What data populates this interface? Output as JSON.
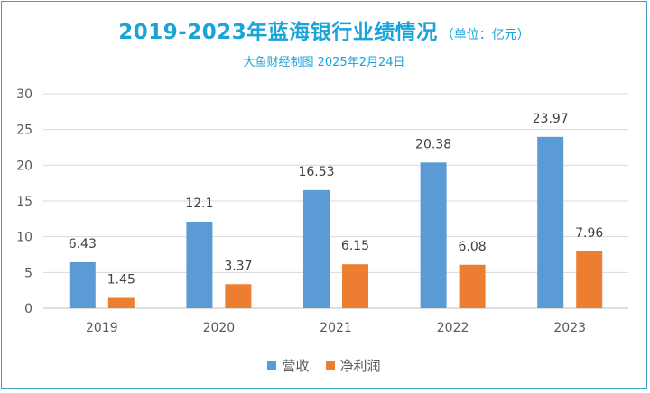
{
  "header": {
    "title": "2019-2023年蓝海银行业绩情况",
    "unit": "（单位：亿元）",
    "subtitle": "大鱼财经制图 2025年2月24日"
  },
  "colors": {
    "revenue": "#5b9bd5",
    "profit": "#ed7d31",
    "title": "#1aa3d8"
  },
  "chart_data": {
    "type": "bar",
    "title": "2019-2023年蓝海银行业绩情况",
    "categories": [
      "2019",
      "2020",
      "2021",
      "2022",
      "2023"
    ],
    "series": [
      {
        "name": "营收",
        "values": [
          6.43,
          12.1,
          16.53,
          20.38,
          23.97
        ],
        "labels": [
          "6.43",
          "12.1",
          "16.53",
          "20.38",
          "23.97"
        ]
      },
      {
        "name": "净利润",
        "values": [
          1.45,
          3.37,
          6.15,
          6.08,
          7.96
        ],
        "labels": [
          "1.45",
          "3.37",
          "6.15",
          "6.08",
          "7.96"
        ]
      }
    ],
    "ylim": [
      0,
      30
    ],
    "yticks": [
      0,
      5,
      10,
      15,
      20,
      25,
      30
    ],
    "grid": true,
    "legend": "bottom"
  }
}
